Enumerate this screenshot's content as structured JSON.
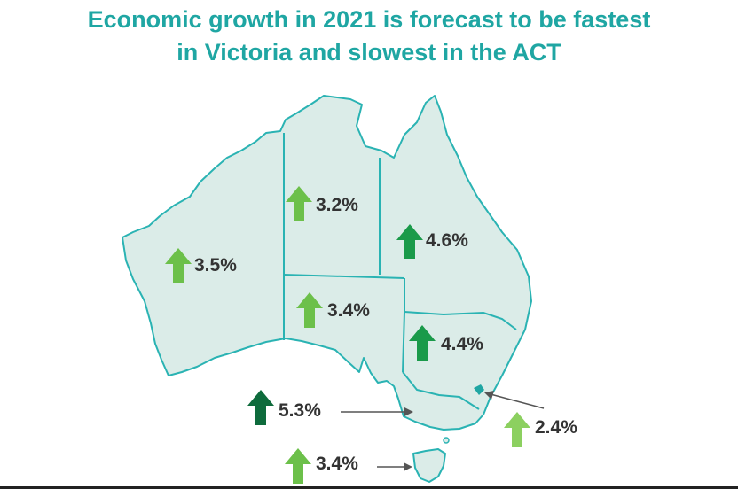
{
  "title": {
    "line1": "Economic growth in 2021 is forecast to be fastest",
    "line2": "in Victoria and slowest in the ACT"
  },
  "regions": [
    {
      "id": "wa",
      "value": "3.5%",
      "arrow_color": "#6cc04a"
    },
    {
      "id": "nt",
      "value": "3.2%",
      "arrow_color": "#6cc04a"
    },
    {
      "id": "qld",
      "value": "4.6%",
      "arrow_color": "#1a9a4a"
    },
    {
      "id": "sa",
      "value": "3.4%",
      "arrow_color": "#6cc04a"
    },
    {
      "id": "nsw",
      "value": "4.4%",
      "arrow_color": "#1a9a4a"
    },
    {
      "id": "vic",
      "value": "5.3%",
      "arrow_color": "#0e6b3c"
    },
    {
      "id": "act",
      "value": "2.4%",
      "arrow_color": "#8cd060"
    },
    {
      "id": "tas",
      "value": "3.4%",
      "arrow_color": "#6cc04a"
    }
  ],
  "colors": {
    "title": "#1fa6a3",
    "land_fill": "#dbece8",
    "border": "#2ab3b3",
    "act_marker": "#1fa6a3"
  }
}
